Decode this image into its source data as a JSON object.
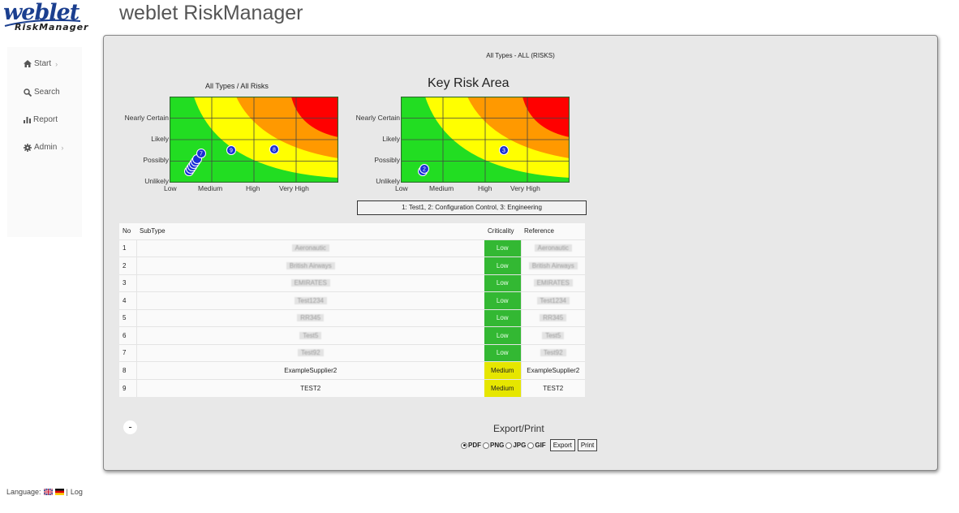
{
  "header": {
    "logo_top": "weblet",
    "logo_bottom": "RiskManager",
    "title": "weblet RiskManager"
  },
  "sidebar": {
    "items": [
      {
        "label": "Start",
        "icon": "home-icon",
        "has_submenu": true
      },
      {
        "label": "Search",
        "icon": "search-icon",
        "has_submenu": false
      },
      {
        "label": "Report",
        "icon": "bar-chart-icon",
        "has_submenu": false
      },
      {
        "label": "Admin",
        "icon": "gear-icon",
        "has_submenu": true
      }
    ]
  },
  "footer": {
    "language_label": "Language:",
    "separator": "|",
    "log_link": "Log"
  },
  "main": {
    "panel_title": "All Types - ALL (RISKS)",
    "matrix_left": {
      "title": "All Types / All Risks",
      "y_labels": [
        "Nearly Certain",
        "Likely",
        "Possibly",
        "Unlikely"
      ],
      "x_labels": [
        "Low",
        "Medium",
        "High",
        "Very High"
      ],
      "markers": [
        "7",
        "9",
        "8"
      ]
    },
    "matrix_right": {
      "title": "Key Risk Area",
      "y_labels": [
        "Nearly Certain",
        "Likely",
        "Possibly",
        "Unlikely"
      ],
      "x_labels": [
        "Low",
        "Medium",
        "High",
        "Very High"
      ],
      "markers": [
        "2",
        "3"
      ]
    },
    "legend": "1: Test1, 2: Configuration Control, 3: Engineering",
    "table": {
      "headers": [
        "No",
        "SubType",
        "Criticality",
        "Reference"
      ],
      "rows": [
        {
          "no": "1",
          "subtype": "Aeronautic",
          "criticality": "Low",
          "level": "low",
          "reference": "Aeronautic"
        },
        {
          "no": "2",
          "subtype": "British Airways",
          "criticality": "Low",
          "level": "low",
          "reference": "British Airways"
        },
        {
          "no": "3",
          "subtype": "EMIRATES",
          "criticality": "Low",
          "level": "low",
          "reference": "EMIRATES"
        },
        {
          "no": "4",
          "subtype": "Test1234",
          "criticality": "Low",
          "level": "low",
          "reference": "Test1234"
        },
        {
          "no": "5",
          "subtype": "RR345",
          "criticality": "Low",
          "level": "low",
          "reference": "RR345"
        },
        {
          "no": "6",
          "subtype": "Test5",
          "criticality": "Low",
          "level": "low",
          "reference": "Test5"
        },
        {
          "no": "7",
          "subtype": "Test92",
          "criticality": "Low",
          "level": "low",
          "reference": "Test92"
        },
        {
          "no": "8",
          "subtype": "ExampleSupplier2",
          "criticality": "Medium",
          "level": "medium",
          "reference": "ExampleSupplier2"
        },
        {
          "no": "9",
          "subtype": "TEST2",
          "criticality": "Medium",
          "level": "medium",
          "reference": "TEST2"
        }
      ]
    },
    "collapse_label": "-",
    "export": {
      "title": "Export/Print",
      "formats": [
        "PDF",
        "PNG",
        "JPG",
        "GIF"
      ],
      "selected": "PDF",
      "export_button": "Export",
      "print_button": "Print"
    }
  },
  "colors": {
    "green": "#22dd22",
    "yellow": "#ffff00",
    "orange": "#ff9900",
    "red": "#ff0000",
    "marker": "#1a2fd6",
    "low": "#33b833",
    "medium": "#e6e600"
  }
}
